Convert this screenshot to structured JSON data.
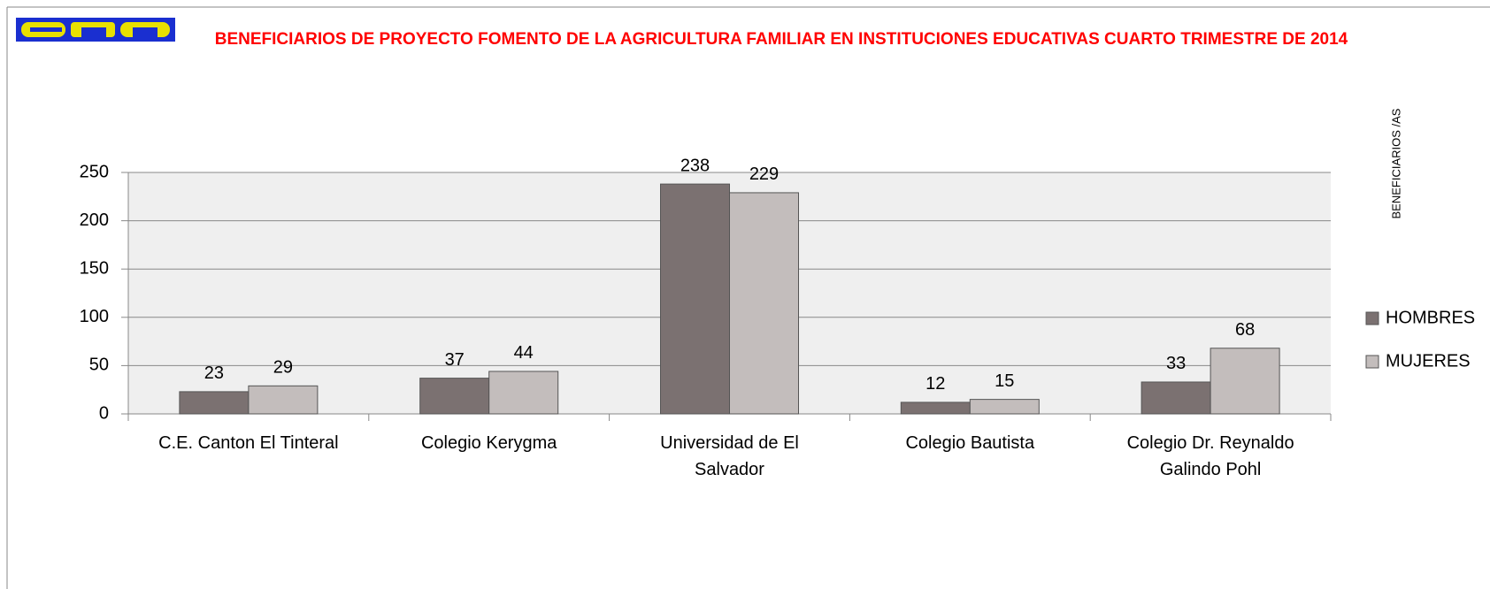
{
  "chart_data": {
    "type": "bar",
    "title": "BENEFICIARIOS DE PROYECTO FOMENTO DE LA AGRICULTURA FAMILIAR EN INSTITUCIONES EDUCATIVAS CUARTO TRIMESTRE DE 2014",
    "y_axis_label": "BENEFICIARIOS /AS",
    "categories": [
      "C.E. Canton El Tinteral",
      "Colegio Kerygma",
      "Universidad de El Salvador",
      "Colegio Bautista",
      "Colegio Dr. Reynaldo Galindo Pohl"
    ],
    "series": [
      {
        "name": "HOMBRES",
        "color": "#7b7171",
        "values": [
          23,
          37,
          238,
          12,
          33
        ]
      },
      {
        "name": "MUJERES",
        "color": "#c3bdbc",
        "values": [
          29,
          44,
          229,
          15,
          68
        ]
      }
    ],
    "ylim": [
      0,
      250
    ],
    "yticks": [
      0,
      50,
      100,
      150,
      200,
      250
    ],
    "grid": true,
    "legend": "right"
  }
}
